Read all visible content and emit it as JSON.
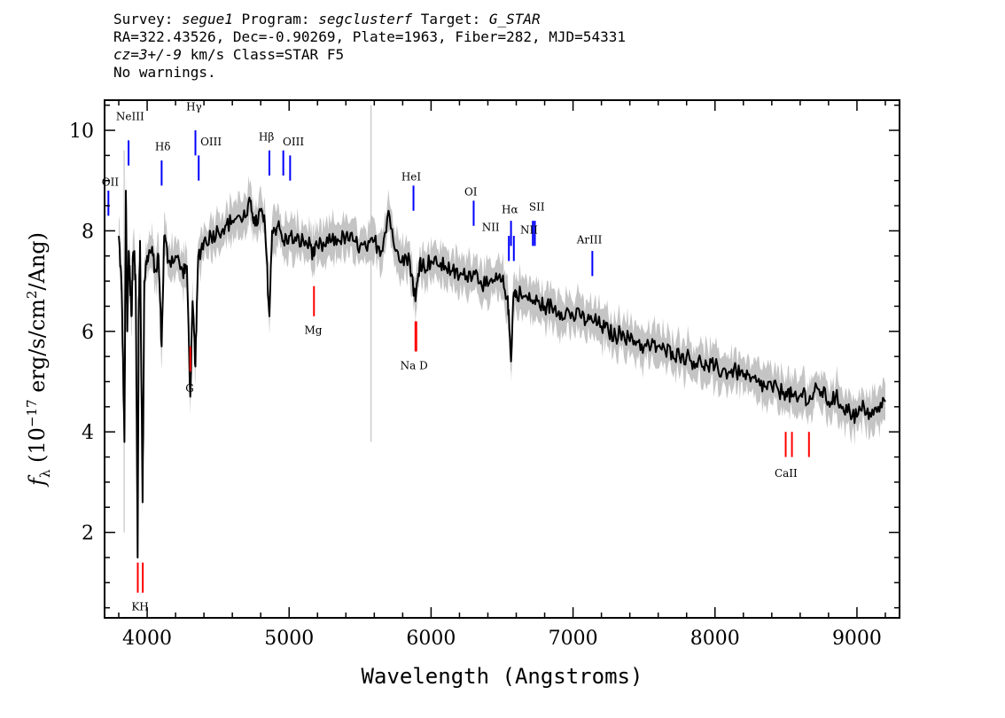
{
  "header": {
    "line1_prefix": "Survey: ",
    "survey": "segue1",
    "line1_mid": " Program: ",
    "program": "segclusterf",
    "line1_mid2": " Target: ",
    "target": "G_STAR",
    "line2": "RA=322.43526, Dec=-0.90269, Plate=1963, Fiber=282, MJD=54331",
    "line3_prefix": "cz=3+/-9",
    "line3_suffix": " km/s Class=STAR F5",
    "line4": "No warnings."
  },
  "chart_data": {
    "type": "line",
    "xlabel": "Wavelength (Angstroms)",
    "ylabel": "f_λ (10^-17 erg/s/cm²/Ang)",
    "xlim": [
      3700,
      9300
    ],
    "ylim": [
      0.3,
      10.6
    ],
    "x_ticks": [
      4000,
      5000,
      6000,
      7000,
      8000,
      9000
    ],
    "x_tick_labels": [
      "4000",
      "5000",
      "6000",
      "7000",
      "8000",
      "9000"
    ],
    "y_ticks": [
      2,
      4,
      6,
      8,
      10
    ],
    "y_tick_labels": [
      "2",
      "4",
      "6",
      "8",
      "10"
    ],
    "grid": false,
    "colors": {
      "spectrum": "#000000",
      "error": "#c4c4c4",
      "emission": "#0000ff",
      "absorption": "#ff0000",
      "sky": "#000000"
    },
    "spectrum": {
      "x": [
        3800,
        3820,
        3840,
        3850,
        3860,
        3870,
        3880,
        3890,
        3900,
        3910,
        3920,
        3933,
        3940,
        3950,
        3968,
        3980,
        4000,
        4030,
        4060,
        4080,
        4102,
        4120,
        4150,
        4200,
        4250,
        4280,
        4304,
        4320,
        4340,
        4360,
        4400,
        4450,
        4500,
        4550,
        4600,
        4650,
        4700,
        4730,
        4760,
        4800,
        4830,
        4861,
        4880,
        4920,
        4960,
        5000,
        5050,
        5100,
        5150,
        5175,
        5200,
        5250,
        5300,
        5350,
        5400,
        5450,
        5500,
        5550,
        5600,
        5650,
        5700,
        5750,
        5800,
        5850,
        5890,
        5920,
        5950,
        6000,
        6050,
        6100,
        6150,
        6200,
        6250,
        6300,
        6350,
        6400,
        6450,
        6500,
        6540,
        6563,
        6580,
        6600,
        6650,
        6700,
        6750,
        6800,
        6850,
        6900,
        6950,
        7000,
        7050,
        7100,
        7150,
        7200,
        7250,
        7300,
        7350,
        7400,
        7450,
        7500,
        7550,
        7600,
        7650,
        7700,
        7750,
        7800,
        7850,
        7900,
        7950,
        8000,
        8050,
        8100,
        8150,
        8200,
        8250,
        8300,
        8350,
        8400,
        8450,
        8500,
        8540,
        8580,
        8620,
        8662,
        8700,
        8750,
        8800,
        8850,
        8900,
        8950,
        9000,
        9050,
        9100,
        9150,
        9200
      ],
      "y": [
        7.9,
        6.9,
        3.8,
        8.8,
        6.0,
        7.6,
        7.0,
        6.3,
        7.5,
        7.6,
        6.8,
        1.5,
        6.2,
        7.8,
        2.6,
        7.0,
        7.5,
        7.6,
        7.2,
        7.5,
        5.7,
        7.9,
        7.4,
        7.5,
        7.2,
        7.3,
        4.7,
        6.6,
        5.3,
        7.5,
        7.8,
        7.9,
        8.0,
        8.1,
        8.2,
        8.3,
        8.3,
        8.6,
        8.1,
        8.4,
        8.1,
        6.3,
        8.0,
        8.1,
        7.8,
        7.9,
        7.8,
        7.8,
        7.7,
        7.5,
        7.7,
        7.7,
        7.8,
        7.8,
        7.9,
        7.8,
        7.7,
        7.6,
        7.8,
        7.6,
        8.4,
        7.6,
        7.5,
        7.4,
        6.6,
        7.4,
        7.3,
        7.4,
        7.3,
        7.3,
        7.2,
        7.1,
        7.1,
        7.2,
        7.0,
        6.9,
        7.0,
        7.0,
        6.7,
        5.4,
        6.7,
        6.8,
        6.7,
        6.6,
        6.6,
        6.5,
        6.5,
        6.4,
        6.4,
        6.3,
        6.3,
        6.2,
        6.2,
        6.1,
        6.0,
        5.9,
        6.0,
        5.8,
        5.8,
        5.7,
        5.7,
        5.7,
        5.6,
        5.6,
        5.5,
        5.5,
        5.4,
        5.4,
        5.3,
        5.3,
        5.2,
        5.2,
        5.2,
        5.1,
        5.0,
        5.0,
        4.9,
        4.9,
        4.8,
        4.8,
        4.7,
        4.6,
        4.8,
        4.6,
        4.8,
        4.8,
        4.6,
        4.7,
        4.5,
        4.4,
        4.3,
        4.5,
        4.3,
        4.5,
        4.6
      ]
    },
    "error_band_halfwidth": 0.35,
    "sky_spikes": [
      {
        "x": 5577,
        "y1": 3.8,
        "y2": 10.5
      },
      {
        "x": 3838,
        "y1": 2.0,
        "y2": 9.6
      }
    ],
    "emission_lines": [
      {
        "label": "OII",
        "x": 3727,
        "top": 8.8,
        "bottom": 8.3
      },
      {
        "label": "NeIII",
        "x": 3869,
        "top": 9.8,
        "bottom": 9.3
      },
      {
        "label": "Hδ",
        "x": 4102,
        "top": 9.4,
        "bottom": 8.9
      },
      {
        "label": "Hγ",
        "x": 4340,
        "top": 10.0,
        "bottom": 9.5
      },
      {
        "label": "OIII",
        "x": 4363,
        "top": 9.5,
        "bottom": 9.0
      },
      {
        "label": "Hβ",
        "x": 4861,
        "top": 9.6,
        "bottom": 9.1
      },
      {
        "label": "OIII",
        "x": 4959,
        "top": 9.6,
        "bottom": 9.1
      },
      {
        "label": "OIII",
        "x": 5007,
        "top": 9.5,
        "bottom": 9.0
      },
      {
        "label": "HeI",
        "x": 5876,
        "top": 8.9,
        "bottom": 8.4
      },
      {
        "label": "OI",
        "x": 6300,
        "top": 8.6,
        "bottom": 8.1
      },
      {
        "label": "NII",
        "x": 6548,
        "top": 7.9,
        "bottom": 7.4
      },
      {
        "label": "Hα",
        "x": 6563,
        "top": 8.2,
        "bottom": 7.7
      },
      {
        "label": "NII",
        "x": 6583,
        "top": 7.9,
        "bottom": 7.4
      },
      {
        "label": "SII",
        "x": 6717,
        "top": 8.2,
        "bottom": 7.7
      },
      {
        "label": "SII",
        "x": 6731,
        "top": 8.2,
        "bottom": 7.7
      },
      {
        "label": "ArIII",
        "x": 7136,
        "top": 7.6,
        "bottom": 7.1
      }
    ],
    "absorption_lines": [
      {
        "label": "K",
        "x": 3934,
        "top": 1.4,
        "bottom": 0.8
      },
      {
        "label": "H",
        "x": 3969,
        "top": 1.4,
        "bottom": 0.8
      },
      {
        "label": "G",
        "x": 4304,
        "top": 5.7,
        "bottom": 5.2
      },
      {
        "label": "Mg",
        "x": 5175,
        "top": 6.9,
        "bottom": 6.3
      },
      {
        "label": "Na",
        "x": 5890,
        "top": 6.2,
        "bottom": 5.6
      },
      {
        "label": "D",
        "x": 5896,
        "top": 6.2,
        "bottom": 5.6
      },
      {
        "label": "CaII",
        "x": 8498,
        "top": 4.0,
        "bottom": 3.5
      },
      {
        "label": "CaII",
        "x": 8542,
        "top": 4.0,
        "bottom": 3.5
      },
      {
        "label": "CaII",
        "x": 8662,
        "top": 4.0,
        "bottom": 3.5
      }
    ],
    "line_text_labels": [
      {
        "text": "OII",
        "x": 3740,
        "y": 8.9,
        "kind": "emission"
      },
      {
        "text": "NeIII",
        "x": 3880,
        "y": 10.2,
        "kind": "emission"
      },
      {
        "text": "Hδ",
        "x": 4110,
        "y": 9.6,
        "kind": "emission"
      },
      {
        "text": "Hγ",
        "x": 4330,
        "y": 10.4,
        "kind": "emission"
      },
      {
        "text": "OIII",
        "x": 4450,
        "y": 9.7,
        "kind": "emission"
      },
      {
        "text": "Hβ",
        "x": 4840,
        "y": 9.8,
        "kind": "emission"
      },
      {
        "text": "OIII",
        "x": 5030,
        "y": 9.7,
        "kind": "emission"
      },
      {
        "text": "HeI",
        "x": 5860,
        "y": 9.0,
        "kind": "emission"
      },
      {
        "text": "OI",
        "x": 6280,
        "y": 8.7,
        "kind": "emission"
      },
      {
        "text": "NII",
        "x": 6420,
        "y": 8.0,
        "kind": "emission"
      },
      {
        "text": "Hα",
        "x": 6555,
        "y": 8.35,
        "kind": "emission"
      },
      {
        "text": "NII",
        "x": 6690,
        "y": 7.95,
        "kind": "emission"
      },
      {
        "text": "SII",
        "x": 6745,
        "y": 8.4,
        "kind": "emission"
      },
      {
        "text": "ArIII",
        "x": 7115,
        "y": 7.75,
        "kind": "emission"
      },
      {
        "text": "KH",
        "x": 3950,
        "y": 0.45,
        "kind": "absorption"
      },
      {
        "text": "G",
        "x": 4300,
        "y": 4.8,
        "kind": "absorption"
      },
      {
        "text": "Mg",
        "x": 5170,
        "y": 5.95,
        "kind": "absorption"
      },
      {
        "text": "Na  D",
        "x": 5880,
        "y": 5.25,
        "kind": "absorption"
      },
      {
        "text": "CaII",
        "x": 8500,
        "y": 3.1,
        "kind": "absorption"
      }
    ]
  }
}
